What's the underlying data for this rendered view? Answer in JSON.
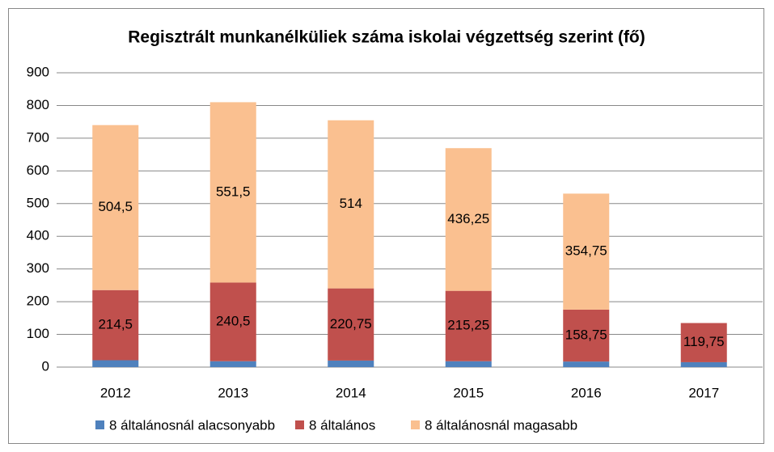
{
  "chart_data": {
    "type": "stacked_bar",
    "title": "Regisztrált munkanélküliek száma iskolai végzettség szerint (fő)",
    "categories": [
      "2012",
      "2013",
      "2014",
      "2015",
      "2016",
      "2017"
    ],
    "series": [
      {
        "name": "8 általánosnál alacsonyabb",
        "color": "#4f81bd",
        "values": [
          21,
          18,
          20,
          18,
          17,
          15
        ]
      },
      {
        "name": "8 általános",
        "color": "#c0504d",
        "values": [
          214.5,
          240.5,
          220.75,
          215.25,
          158.75,
          119.75
        ],
        "value_labels": [
          "214,5",
          "240,5",
          "220,75",
          "215,25",
          "158,75",
          "119,75"
        ]
      },
      {
        "name": "8 általánosnál magasabb",
        "color": "#fac090",
        "values": [
          504.5,
          551.5,
          514,
          436.25,
          354.75,
          null
        ],
        "value_labels": [
          "504,5",
          "551,5",
          "514",
          "436,25",
          "354,75",
          null
        ]
      }
    ],
    "ylim": [
      0,
      900
    ],
    "yticks": [
      0,
      100,
      200,
      300,
      400,
      500,
      600,
      700,
      800,
      900
    ],
    "grid": true,
    "legend": "bottom"
  }
}
